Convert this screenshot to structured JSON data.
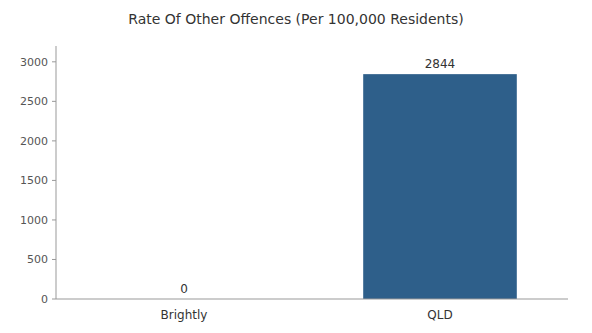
{
  "chart_data": {
    "type": "bar",
    "title": "Rate Of Other Offences (Per 100,000 Residents)",
    "categories": [
      "Brightly",
      "QLD"
    ],
    "values": [
      0,
      2844
    ],
    "color": "#2e5f8a",
    "ylim": [
      0,
      3200
    ],
    "yticks": [
      0,
      500,
      1000,
      1500,
      2000,
      2500,
      3000
    ],
    "grid": false,
    "data_labels": true
  }
}
